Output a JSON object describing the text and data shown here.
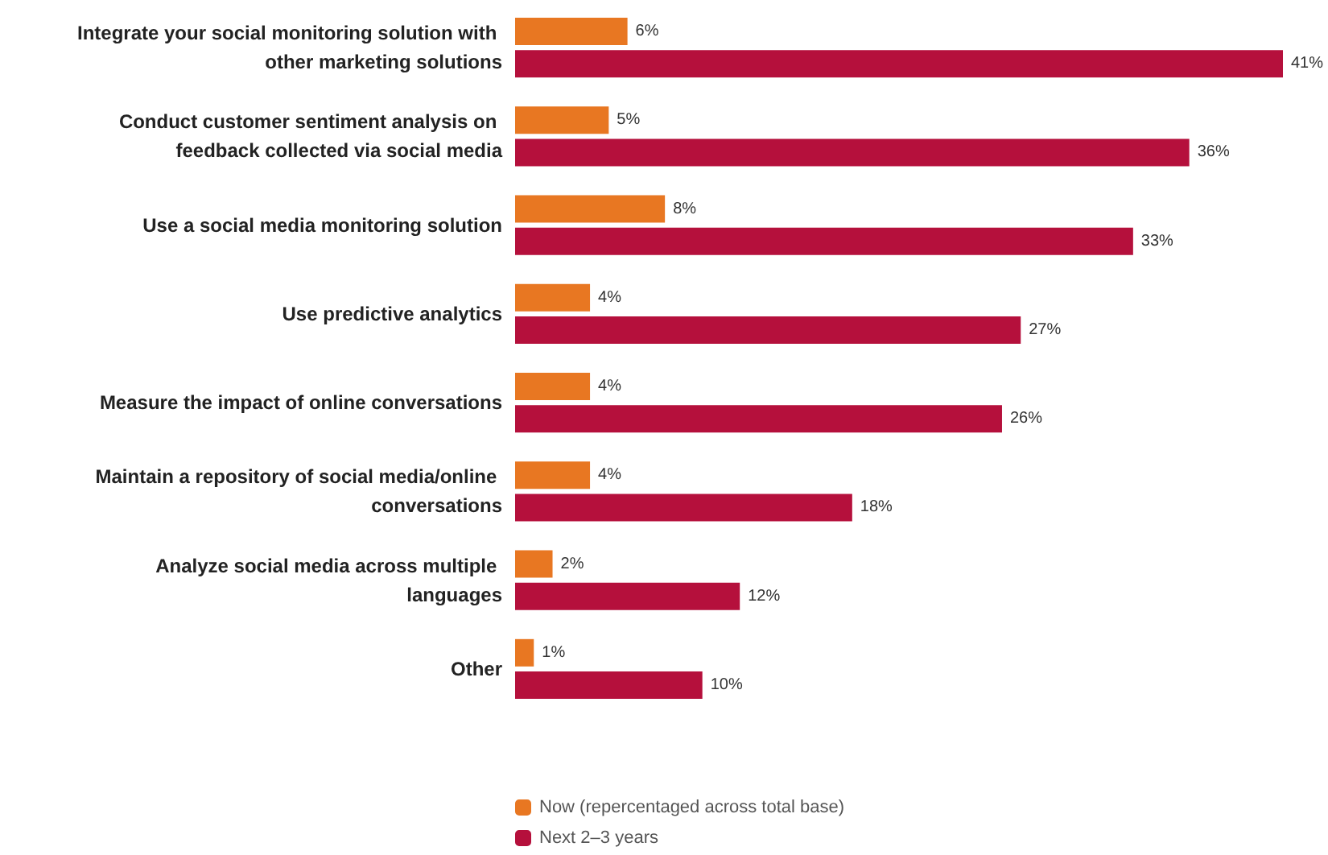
{
  "chart_data": {
    "type": "bar",
    "orientation": "horizontal",
    "legend": "bottom",
    "categories": [
      "Integrate your social monitoring solution with other marketing solutions",
      "Conduct customer sentiment analysis on feedback collected via social media",
      "Use a social media monitoring solution",
      "Use predictive analytics",
      "Measure the impact of online conversations",
      "Maintain a repository of social media/online conversations",
      "Analyze social media across multiple languages",
      "Other"
    ],
    "series": [
      {
        "name": "Now (repercentaged across total base)",
        "color": "#e87722",
        "values": [
          6,
          5,
          8,
          4,
          4,
          4,
          2,
          1
        ],
        "value_labels": [
          "6%",
          "5%",
          "8%",
          "4%",
          "4%",
          "4%",
          "2%",
          "1%"
        ]
      },
      {
        "name": "Next 2–3 years",
        "color": "#b5103c",
        "values": [
          41,
          36,
          33,
          27,
          26,
          18,
          12,
          10
        ],
        "value_labels": [
          "41%",
          "36%",
          "33%",
          "27%",
          "26%",
          "18%",
          "12%",
          "10%"
        ]
      }
    ]
  }
}
